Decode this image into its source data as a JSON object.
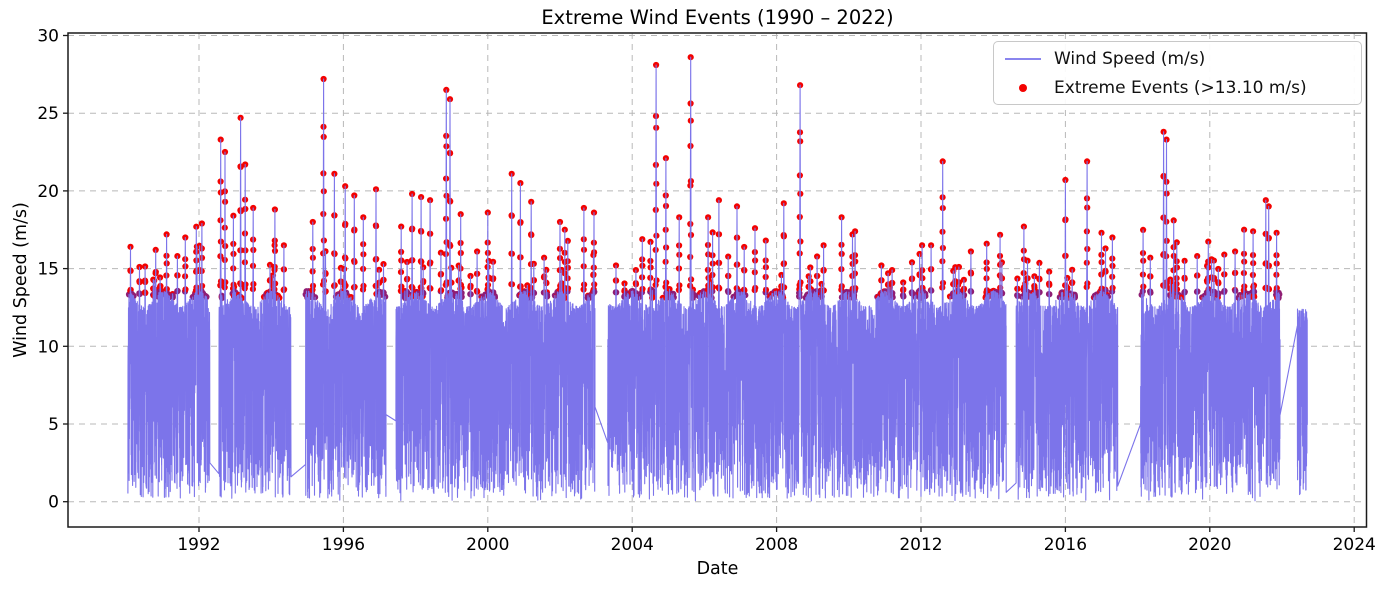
{
  "chart_data": {
    "type": "line",
    "title": "Extreme Wind Events (1990 – 2022)",
    "xlabel": "Date",
    "ylabel": "Wind Speed (m/s)",
    "xlim": [
      1988.37,
      2024.34
    ],
    "ylim": [
      -1.63,
      30.16
    ],
    "xticks": [
      1992,
      1996,
      2000,
      2004,
      2008,
      2012,
      2016,
      2020,
      2024
    ],
    "yticks": [
      0,
      5,
      10,
      15,
      20,
      25,
      30
    ],
    "grid": true,
    "grid_color": "#b8b8b8",
    "legend_position": "upper right",
    "threshold": 13.1,
    "series": [
      {
        "name": "Wind Speed (m/s)",
        "kind": "line",
        "color": "#7c74ea",
        "legend_color": "#8a85ee"
      },
      {
        "name": "Extreme Events (>13.10 m/s)",
        "kind": "scatter",
        "color": "#f30201",
        "color_over_line": "#8f1d74"
      }
    ],
    "time_range": [
      1990.03,
      2022.7
    ],
    "samples_per_year": 365,
    "base_band": {
      "min": 0.2,
      "cap_summer": 12.55,
      "cap_winter": 13.55
    },
    "tail": {
      "from": 2022.4,
      "cap": 12.4
    },
    "seed": 20,
    "winter_events_per_year": [
      2,
      5
    ],
    "peaks": [
      [
        1990.1,
        16.4
      ],
      [
        1990.35,
        15.1
      ],
      [
        1990.8,
        16.2
      ],
      [
        1991.1,
        17.2
      ],
      [
        1991.4,
        15.8
      ],
      [
        1991.62,
        17.0
      ],
      [
        1992.08,
        17.9
      ],
      [
        1992.6,
        23.3
      ],
      [
        1992.72,
        22.5
      ],
      [
        1992.95,
        18.4
      ],
      [
        1993.15,
        24.7
      ],
      [
        1993.28,
        21.7
      ],
      [
        1993.5,
        18.9
      ],
      [
        1994.1,
        18.8
      ],
      [
        1994.35,
        16.5
      ],
      [
        1995.15,
        18.0
      ],
      [
        1995.45,
        27.2
      ],
      [
        1995.75,
        21.1
      ],
      [
        1996.05,
        20.3
      ],
      [
        1996.3,
        19.7
      ],
      [
        1996.55,
        18.3
      ],
      [
        1996.9,
        20.1
      ],
      [
        1997.6,
        17.7
      ],
      [
        1997.9,
        19.8
      ],
      [
        1998.15,
        19.6
      ],
      [
        1998.4,
        19.4
      ],
      [
        1998.85,
        26.5
      ],
      [
        1998.95,
        25.9
      ],
      [
        1999.25,
        18.5
      ],
      [
        1999.7,
        16.1
      ],
      [
        2000.0,
        18.6
      ],
      [
        2000.66,
        21.1
      ],
      [
        2000.9,
        20.5
      ],
      [
        2001.2,
        19.3
      ],
      [
        2001.56,
        15.7
      ],
      [
        2002.0,
        18.0
      ],
      [
        2002.13,
        17.5
      ],
      [
        2002.66,
        18.9
      ],
      [
        2002.94,
        18.6
      ],
      [
        2003.55,
        15.2
      ],
      [
        2004.1,
        14.9
      ],
      [
        2004.66,
        28.1
      ],
      [
        2004.93,
        22.1
      ],
      [
        2005.3,
        18.3
      ],
      [
        2005.62,
        28.6
      ],
      [
        2006.1,
        18.3
      ],
      [
        2006.4,
        19.4
      ],
      [
        2006.9,
        19.0
      ],
      [
        2007.4,
        17.6
      ],
      [
        2007.7,
        16.8
      ],
      [
        2008.2,
        19.2
      ],
      [
        2008.65,
        26.8
      ],
      [
        2009.3,
        16.5
      ],
      [
        2009.8,
        18.3
      ],
      [
        2010.1,
        17.2
      ],
      [
        2010.9,
        15.2
      ],
      [
        2011.2,
        14.9
      ],
      [
        2011.75,
        15.4
      ],
      [
        2012.03,
        16.5
      ],
      [
        2012.28,
        16.5
      ],
      [
        2012.6,
        21.9
      ],
      [
        2013.05,
        15.1
      ],
      [
        2013.38,
        16.1
      ],
      [
        2013.82,
        16.6
      ],
      [
        2014.24,
        15.4
      ],
      [
        2014.85,
        17.7
      ],
      [
        2015.14,
        14.5
      ],
      [
        2015.55,
        14.8
      ],
      [
        2016.0,
        20.7
      ],
      [
        2016.6,
        21.9
      ],
      [
        2017.0,
        17.3
      ],
      [
        2017.3,
        17.0
      ],
      [
        2018.35,
        15.7
      ],
      [
        2018.72,
        23.8
      ],
      [
        2018.8,
        23.3
      ],
      [
        2019.0,
        18.1
      ],
      [
        2019.3,
        15.5
      ],
      [
        2019.65,
        15.8
      ],
      [
        2020.05,
        15.6
      ],
      [
        2020.4,
        15.9
      ],
      [
        2020.7,
        16.1
      ],
      [
        2020.95,
        17.5
      ],
      [
        2021.2,
        17.4
      ],
      [
        2021.55,
        19.4
      ],
      [
        2021.63,
        19.0
      ],
      [
        2021.85,
        17.3
      ]
    ],
    "gaps": [
      [
        1992.3,
        1992.55,
        2.5,
        1.8
      ],
      [
        1994.55,
        1994.95,
        1.6,
        2.4
      ],
      [
        1997.18,
        1997.45,
        5.6,
        5.2
      ],
      [
        2002.97,
        2003.32,
        6.1,
        3.8
      ],
      [
        2014.36,
        2014.63,
        0.6,
        1.2
      ],
      [
        2017.45,
        2018.08,
        1.0,
        5.0
      ],
      [
        2021.95,
        2022.42,
        5.6,
        11.3
      ]
    ]
  }
}
